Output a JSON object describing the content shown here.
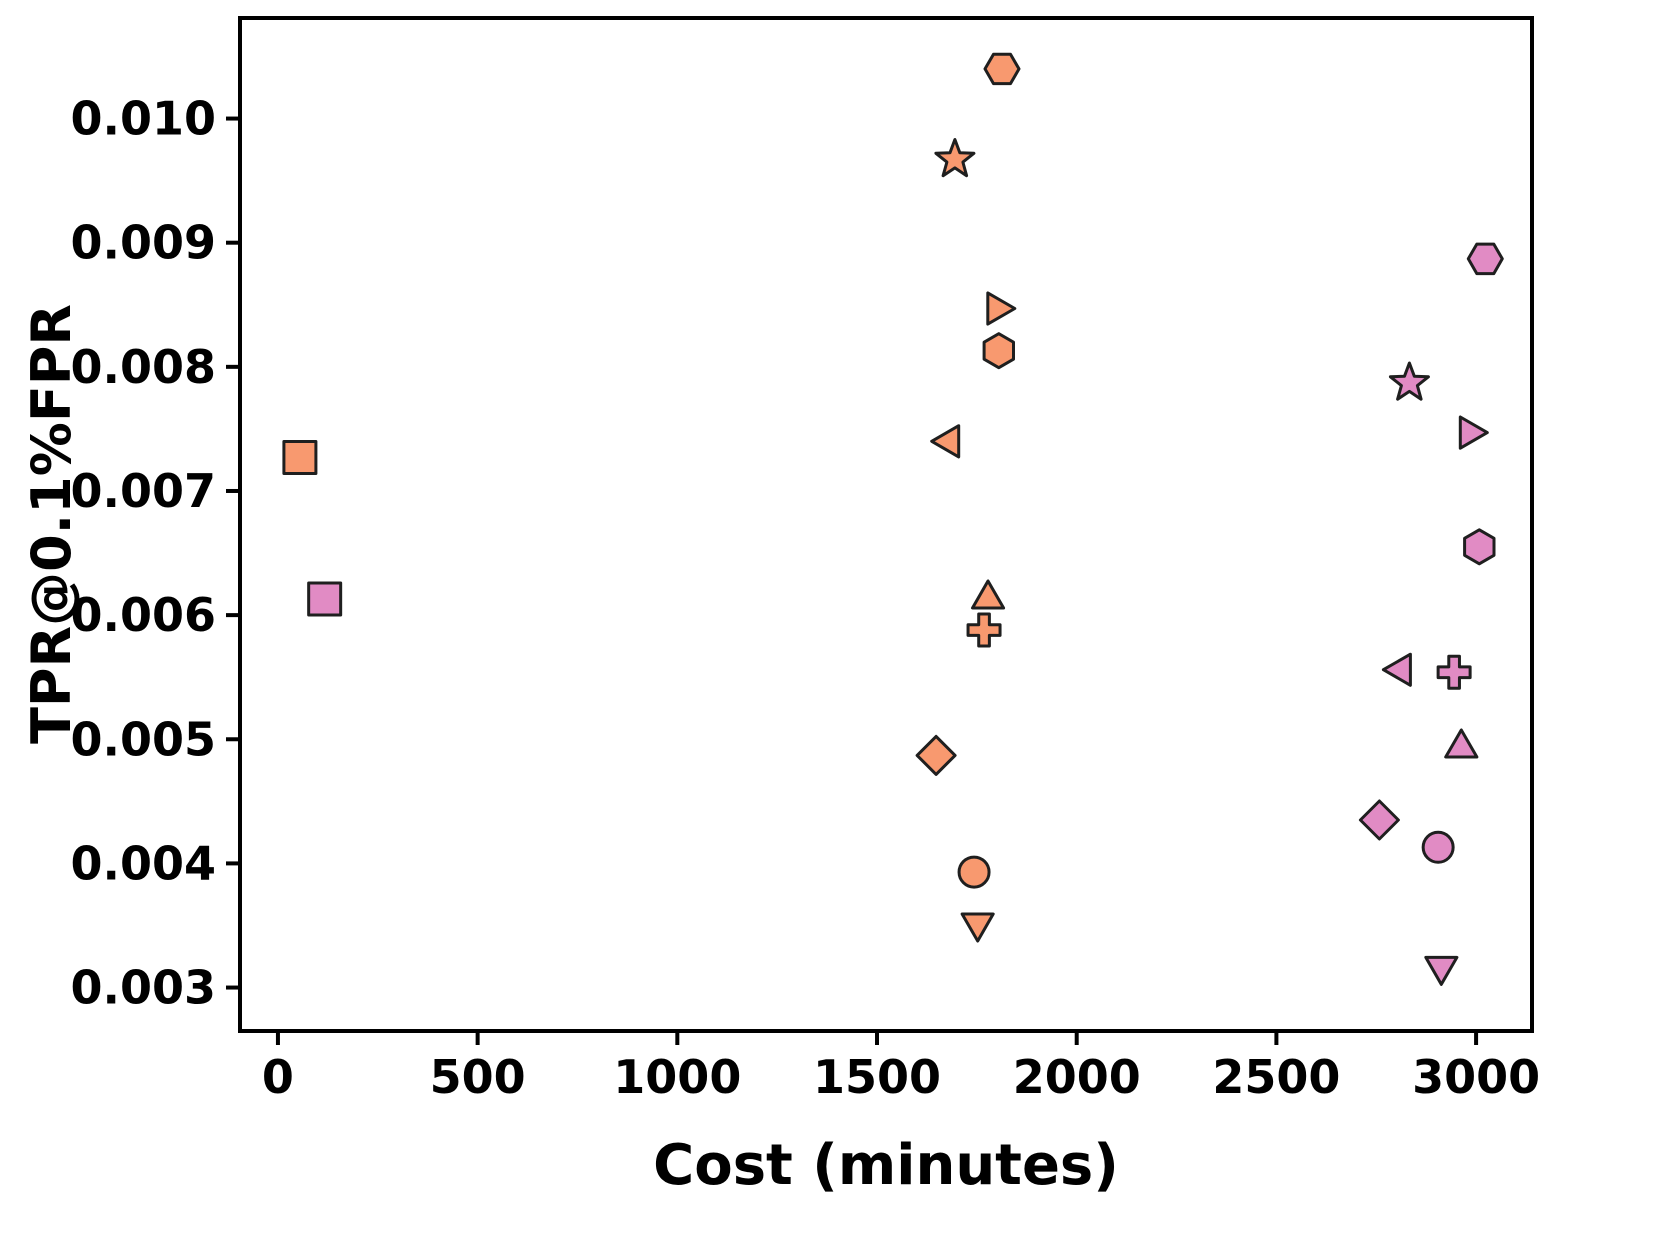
{
  "figure": {
    "background": "#ffffff"
  },
  "chart_data": {
    "type": "scatter",
    "title": "",
    "xlabel": "Cost (minutes)",
    "ylabel": "TPR@0.1%FPR",
    "xlim": [
      -95,
      3140
    ],
    "ylim": [
      0.00265,
      0.01081
    ],
    "xticks": [
      0,
      500,
      1000,
      1500,
      2000,
      2500,
      3000
    ],
    "xtick_labels": [
      "0",
      "500",
      "1000",
      "1500",
      "2000",
      "2500",
      "3000"
    ],
    "yticks": [
      0.003,
      0.004,
      0.005,
      0.006,
      0.007,
      0.008,
      0.009,
      0.01
    ],
    "ytick_labels": [
      "0.003",
      "0.004",
      "0.005",
      "0.006",
      "0.007",
      "0.008",
      "0.009",
      "0.010"
    ],
    "grid": false,
    "legend_position": "none",
    "series": [
      {
        "name": "orange-group",
        "color": "#F8996F",
        "edge_color": "#1f1f1f",
        "points": [
          {
            "marker": "square",
            "x": 55,
            "y": 0.00727
          },
          {
            "marker": "hexagon-flat",
            "x": 1813,
            "y": 0.0104
          },
          {
            "marker": "star",
            "x": 1695,
            "y": 0.00967
          },
          {
            "marker": "triangle-right",
            "x": 1800,
            "y": 0.00847
          },
          {
            "marker": "hexagon-point",
            "x": 1805,
            "y": 0.00813
          },
          {
            "marker": "triangle-left",
            "x": 1682,
            "y": 0.0074
          },
          {
            "marker": "triangle-up",
            "x": 1778,
            "y": 0.00613
          },
          {
            "marker": "plus",
            "x": 1768,
            "y": 0.00588
          },
          {
            "marker": "diamond",
            "x": 1648,
            "y": 0.00487
          },
          {
            "marker": "circle",
            "x": 1743,
            "y": 0.00393
          },
          {
            "marker": "triangle-down",
            "x": 1752,
            "y": 0.00352
          }
        ]
      },
      {
        "name": "pink-group",
        "color": "#E18BC4",
        "edge_color": "#1f1f1f",
        "points": [
          {
            "marker": "square",
            "x": 117,
            "y": 0.00613
          },
          {
            "marker": "hexagon-flat",
            "x": 3023,
            "y": 0.00887
          },
          {
            "marker": "star",
            "x": 2833,
            "y": 0.00787
          },
          {
            "marker": "triangle-right",
            "x": 2983,
            "y": 0.00747
          },
          {
            "marker": "hexagon-point",
            "x": 3008,
            "y": 0.00655
          },
          {
            "marker": "triangle-left",
            "x": 2813,
            "y": 0.00556
          },
          {
            "marker": "plus",
            "x": 2945,
            "y": 0.00554
          },
          {
            "marker": "triangle-up",
            "x": 2963,
            "y": 0.00493
          },
          {
            "marker": "diamond",
            "x": 2758,
            "y": 0.00435
          },
          {
            "marker": "circle",
            "x": 2905,
            "y": 0.00413
          },
          {
            "marker": "triangle-down",
            "x": 2913,
            "y": 0.00317
          }
        ]
      }
    ]
  }
}
